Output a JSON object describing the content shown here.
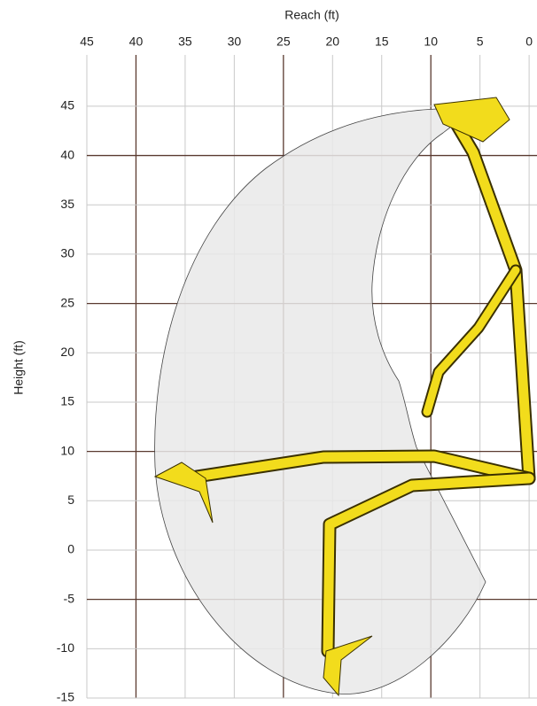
{
  "chart_data": {
    "type": "range",
    "x_label": "Reach (ft)",
    "y_label": "Height (ft)",
    "xlim": [
      45,
      -0.8
    ],
    "xticks": [
      45,
      40,
      35,
      30,
      25,
      20,
      15,
      10,
      5,
      0
    ],
    "ylim": [
      -15,
      50.2
    ],
    "yticks": [
      45,
      40,
      35,
      30,
      25,
      20,
      15,
      10,
      5,
      0,
      -5,
      -10,
      -15
    ],
    "grid": true
  }
}
